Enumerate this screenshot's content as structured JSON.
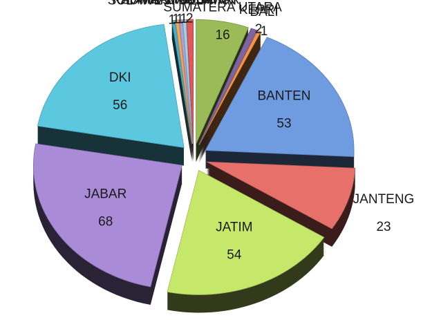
{
  "chart_data": {
    "type": "pie",
    "categories": [
      "SUMATERA UTARA",
      "KEPRI",
      "BALI",
      "BANTEN",
      "JANTENG",
      "JATIM",
      "JABAR",
      "DKI",
      "SULAWESI SELATAN",
      "KALIMANTAN TIMUR",
      "SUMATERA BARAT",
      "LAMPUNG",
      "RIAU"
    ],
    "values": [
      16,
      2,
      1,
      53,
      23,
      54,
      68,
      56,
      1,
      1,
      1,
      1,
      2
    ],
    "colors": [
      "#9bbb59",
      "#8064a2",
      "#f79646",
      "#6f9be0",
      "#e8706a",
      "#c6e86a",
      "#a98bd8",
      "#5bc8e0",
      "#4bacc6",
      "#f2a65a",
      "#b0a0d0",
      "#9fd0e8",
      "#e05858"
    ]
  }
}
